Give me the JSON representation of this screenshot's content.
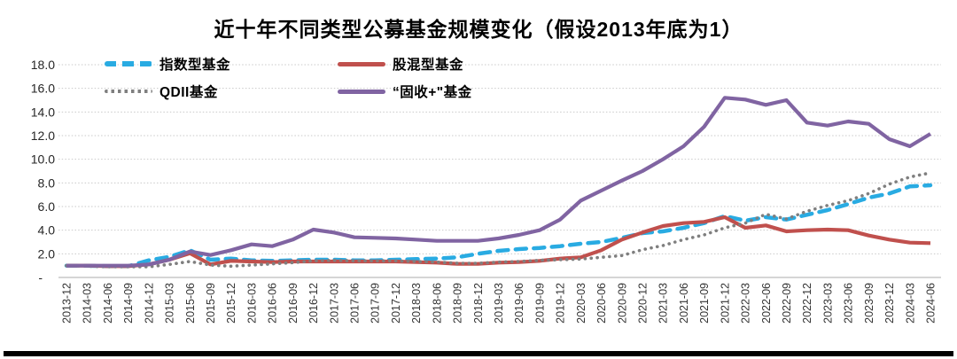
{
  "title": "近十年不同类型公募基金规模变化（假设2013年底为1）",
  "chart_data": {
    "type": "line",
    "title": "近十年不同类型公募基金规模变化（假设2013年底为1）",
    "xlabel": "",
    "ylabel": "",
    "ylim": [
      0,
      18
    ],
    "ytick_step": 2,
    "ytick_labels": [
      "-",
      "2.0",
      "4.0",
      "6.0",
      "8.0",
      "10.0",
      "12.0",
      "14.0",
      "16.0",
      "18.0"
    ],
    "grid": true,
    "legend_position": "top-left-inside",
    "categories": [
      "2013-12",
      "2014-03",
      "2014-06",
      "2014-09",
      "2014-12",
      "2015-03",
      "2015-06",
      "2015-09",
      "2015-12",
      "2016-03",
      "2016-06",
      "2016-09",
      "2016-12",
      "2017-03",
      "2017-06",
      "2017-09",
      "2017-12",
      "2018-03",
      "2018-06",
      "2018-09",
      "2018-12",
      "2019-03",
      "2019-06",
      "2019-09",
      "2019-12",
      "2020-03",
      "2020-06",
      "2020-09",
      "2020-12",
      "2021-03",
      "2021-06",
      "2021-09",
      "2021-12",
      "2022-03",
      "2022-06",
      "2022-09",
      "2022-12",
      "2023-03",
      "2023-06",
      "2023-09",
      "2023-12",
      "2024-03",
      "2024-06"
    ],
    "series": [
      {
        "name": "指数型基金",
        "color": "#29ABE2",
        "style": "dashed",
        "values": [
          1.0,
          1.0,
          0.95,
          0.95,
          1.45,
          1.75,
          2.3,
          1.5,
          1.6,
          1.45,
          1.4,
          1.45,
          1.5,
          1.5,
          1.45,
          1.45,
          1.5,
          1.55,
          1.6,
          1.7,
          2.0,
          2.25,
          2.4,
          2.5,
          2.65,
          2.85,
          3.0,
          3.35,
          3.75,
          3.9,
          4.2,
          4.6,
          5.2,
          4.8,
          5.1,
          4.9,
          5.3,
          5.7,
          6.2,
          6.75,
          7.1,
          7.7,
          7.8
        ]
      },
      {
        "name": "股混型基金",
        "color": "#C0504D",
        "style": "solid",
        "values": [
          1.0,
          1.0,
          0.95,
          0.95,
          1.1,
          1.5,
          2.05,
          1.1,
          1.4,
          1.35,
          1.3,
          1.35,
          1.35,
          1.35,
          1.35,
          1.35,
          1.35,
          1.3,
          1.25,
          1.15,
          1.15,
          1.25,
          1.3,
          1.4,
          1.6,
          1.7,
          2.3,
          3.2,
          3.8,
          4.35,
          4.6,
          4.7,
          5.1,
          4.2,
          4.4,
          3.9,
          4.0,
          4.05,
          4.0,
          3.55,
          3.2,
          2.95,
          2.9
        ]
      },
      {
        "name": "QDII基金",
        "color": "#7F7F7F",
        "style": "dotted",
        "values": [
          1.0,
          0.95,
          0.9,
          0.9,
          0.9,
          1.1,
          1.35,
          1.05,
          0.95,
          1.05,
          1.15,
          1.25,
          1.4,
          1.45,
          1.4,
          1.4,
          1.4,
          1.35,
          1.3,
          1.2,
          1.2,
          1.3,
          1.35,
          1.45,
          1.5,
          1.55,
          1.7,
          1.85,
          2.35,
          2.7,
          3.2,
          3.6,
          4.2,
          4.6,
          5.35,
          4.95,
          5.6,
          6.1,
          6.5,
          7.1,
          7.9,
          8.5,
          8.85
        ]
      },
      {
        "name": "“固收+\"基金",
        "color": "#8064A2",
        "style": "solid",
        "values": [
          1.0,
          1.0,
          1.0,
          1.0,
          1.1,
          1.5,
          2.2,
          1.9,
          2.3,
          2.8,
          2.65,
          3.2,
          4.05,
          3.8,
          3.4,
          3.35,
          3.3,
          3.2,
          3.1,
          3.1,
          3.1,
          3.3,
          3.6,
          4.0,
          4.9,
          6.5,
          7.35,
          8.2,
          9.0,
          10.0,
          11.1,
          12.75,
          15.2,
          15.05,
          14.6,
          15.0,
          13.1,
          12.85,
          13.2,
          13.0,
          11.7,
          11.1,
          12.15
        ]
      }
    ]
  }
}
